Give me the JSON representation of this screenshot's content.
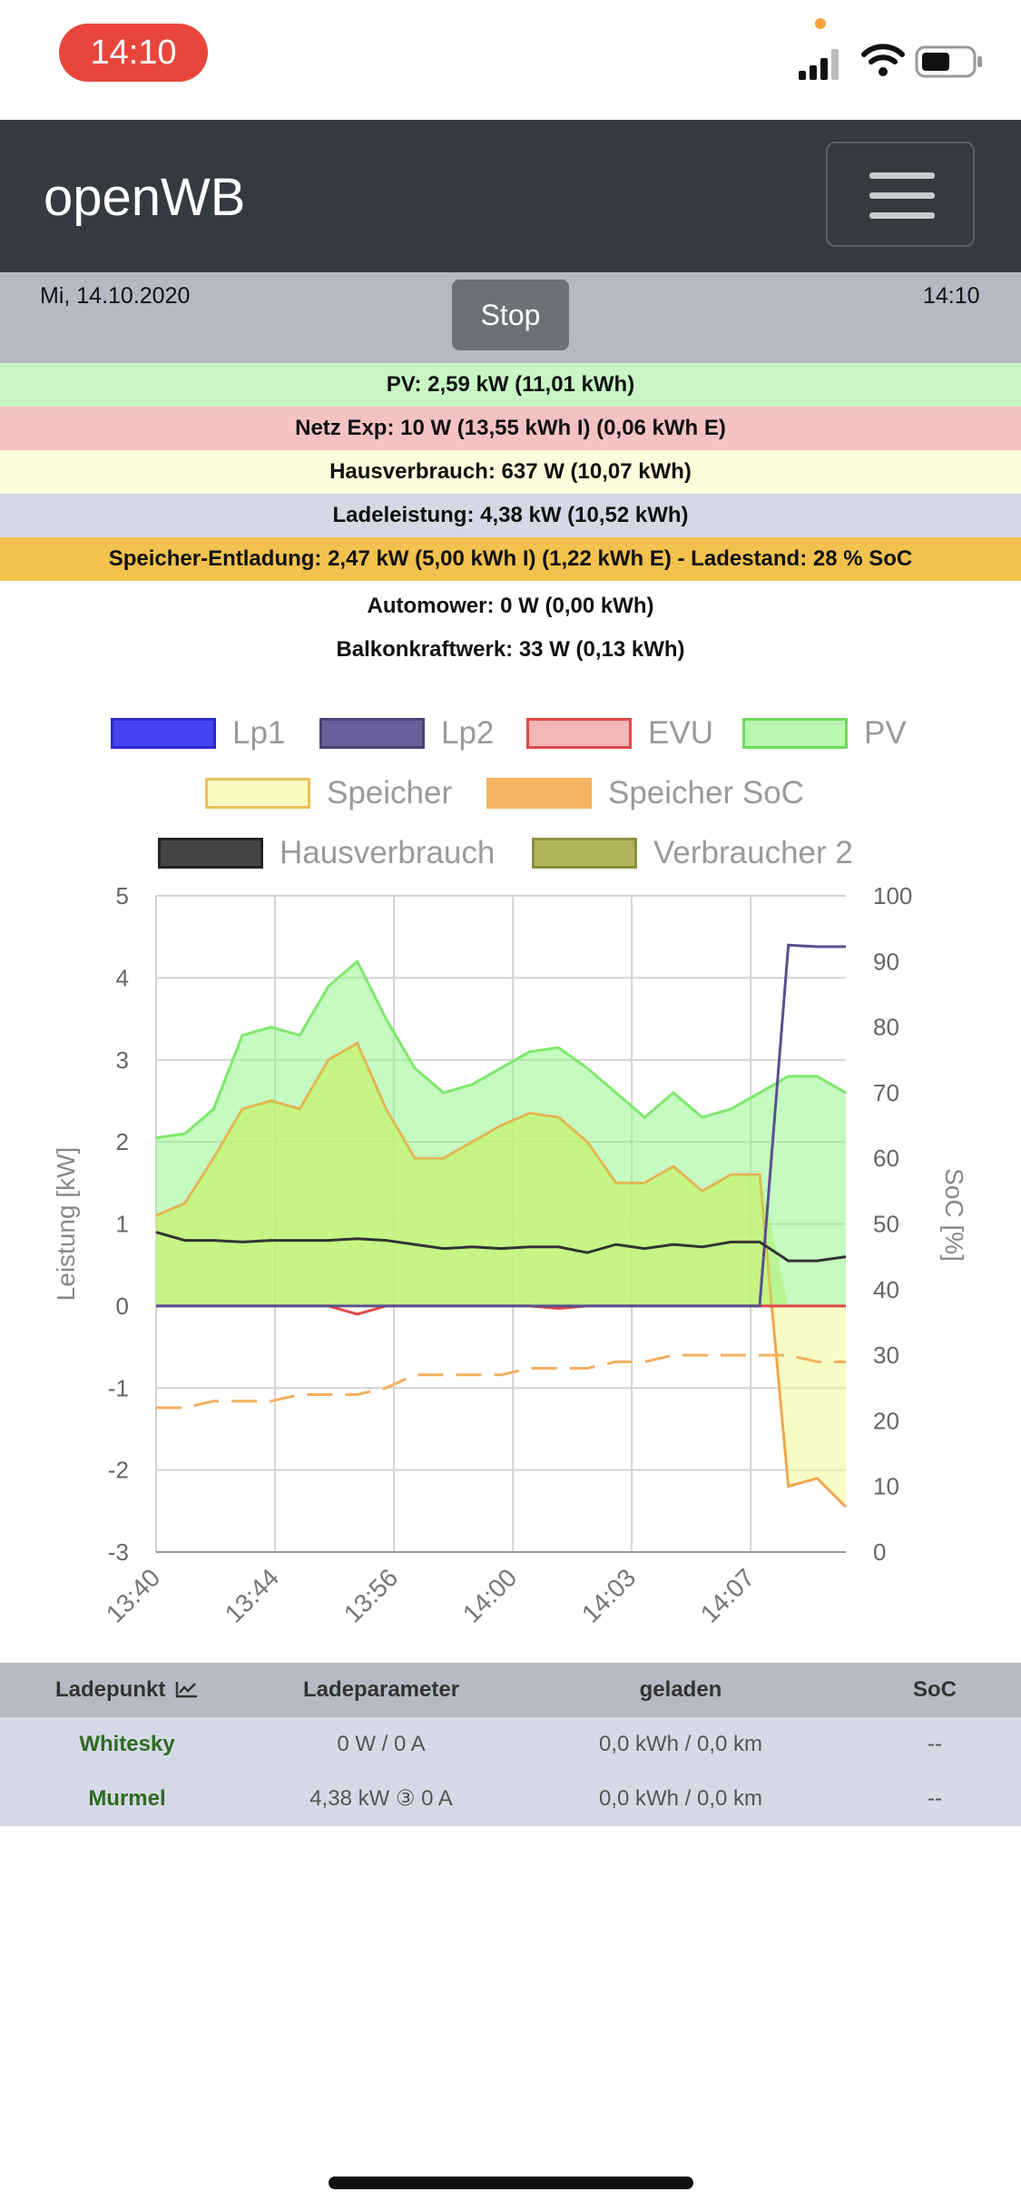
{
  "status_bar": {
    "time": "14:10",
    "icons": [
      "cellular-signal-icon",
      "wifi-icon",
      "battery-icon"
    ]
  },
  "navbar": {
    "brand": "openWB",
    "menu_icon": "hamburger-menu-icon"
  },
  "header": {
    "date": "Mi, 14.10.2020",
    "stop_label": "Stop",
    "time": "14:10"
  },
  "info": {
    "pv": "PV: 2,59 kW (11,01 kWh)",
    "netz": "Netz Exp: 10 W (13,55 kWh I) (0,06 kWh E)",
    "haus": "Hausverbrauch: 637 W (10,07 kWh)",
    "lade": "Ladeleistung: 4,38 kW (10,52 kWh)",
    "speicher": "Speicher-Entladung: 2,47 kW (5,00 kWh I) (1,22 kWh E) - Ladestand: 28 % SoC",
    "automower": "Automower: 0 W (0,00 kWh)",
    "balkon": "Balkonkraftwerk: 33 W (0,13 kWh)"
  },
  "colors": {
    "pv_row": "#c8f7c5",
    "netz_row": "#f4c2c2",
    "haus_row": "#fdfddc",
    "lade_row": "#d4d9e5",
    "speicher_row": "#f2c14e"
  },
  "chart_data": {
    "type": "area",
    "legend": [
      "Lp1",
      "Lp2",
      "EVU",
      "PV",
      "Speicher",
      "Speicher SoC",
      "Hausverbrauch",
      "Verbraucher 2"
    ],
    "legend_colors": [
      "#4444f0",
      "#6a5f9a",
      "#e07070",
      "#8ef27a",
      "#f4f7b0",
      "#f6b460",
      "#444444",
      "#a8ad4c"
    ],
    "ylabel": "Leistung [kW]",
    "y2label": "SoC [%]",
    "ylim": [
      -3,
      5
    ],
    "y2lim": [
      0,
      100
    ],
    "yticks": [
      "5",
      "4",
      "3",
      "2",
      "1",
      "0",
      "-1",
      "-2",
      "-3"
    ],
    "y2ticks": [
      "100",
      "90",
      "80",
      "70",
      "60",
      "50",
      "40",
      "30",
      "20",
      "10",
      "0"
    ],
    "xticks": [
      "13:40",
      "13:44",
      "13:56",
      "14:00",
      "14:03",
      "14:07"
    ],
    "n_points": 25,
    "series": [
      {
        "name": "PV",
        "axis": "left",
        "values": [
          2.05,
          2.1,
          2.4,
          3.3,
          3.4,
          3.3,
          3.9,
          4.2,
          3.5,
          2.9,
          2.6,
          2.7,
          2.9,
          3.1,
          3.15,
          2.9,
          2.6,
          2.3,
          2.6,
          2.3,
          2.4,
          2.6,
          2.8,
          2.8,
          2.6
        ]
      },
      {
        "name": "Speicher",
        "axis": "left",
        "values": [
          1.1,
          1.25,
          1.8,
          2.4,
          2.5,
          2.4,
          3.0,
          3.2,
          2.4,
          1.8,
          1.8,
          2.0,
          2.2,
          2.35,
          2.3,
          2.0,
          1.5,
          1.5,
          1.7,
          1.4,
          1.6,
          1.6,
          -2.2,
          -2.1,
          -2.45
        ]
      },
      {
        "name": "Hausverbrauch",
        "axis": "left",
        "values": [
          0.9,
          0.8,
          0.8,
          0.78,
          0.8,
          0.8,
          0.8,
          0.82,
          0.8,
          0.75,
          0.7,
          0.72,
          0.7,
          0.72,
          0.72,
          0.65,
          0.75,
          0.7,
          0.75,
          0.72,
          0.78,
          0.78,
          0.55,
          0.55,
          0.6
        ]
      },
      {
        "name": "Lp2",
        "axis": "left",
        "values": [
          0,
          0,
          0,
          0,
          0,
          0,
          0,
          0,
          0,
          0,
          0,
          0,
          0,
          0,
          0,
          0,
          0,
          0,
          0,
          0,
          0,
          0,
          4.4,
          4.38,
          4.38
        ]
      },
      {
        "name": "EVU",
        "axis": "left",
        "values": [
          0,
          0,
          0,
          0,
          0,
          0,
          0,
          -0.1,
          0,
          0,
          0,
          0,
          0,
          0,
          -0.03,
          0,
          0,
          0,
          0,
          0,
          0,
          0,
          0,
          0,
          0
        ]
      },
      {
        "name": "Speicher SoC",
        "axis": "right",
        "values": [
          22,
          22,
          23,
          23,
          23,
          24,
          24,
          24,
          25,
          27,
          27,
          27,
          27,
          28,
          28,
          28,
          29,
          29,
          30,
          30,
          30,
          30,
          30,
          29,
          29
        ]
      }
    ]
  },
  "table": {
    "headers": [
      "Ladepunkt",
      "Ladeparameter",
      "geladen",
      "SoC"
    ],
    "rows": [
      {
        "name": "Whitesky",
        "param": "0 W / 0 A",
        "geladen": "0,0 kWh / 0,0 km",
        "soc": "--"
      },
      {
        "name": "Murmel",
        "param": "4,38 kW ③ 0 A",
        "geladen": "0,0 kWh / 0,0 km",
        "soc": "--"
      }
    ]
  }
}
